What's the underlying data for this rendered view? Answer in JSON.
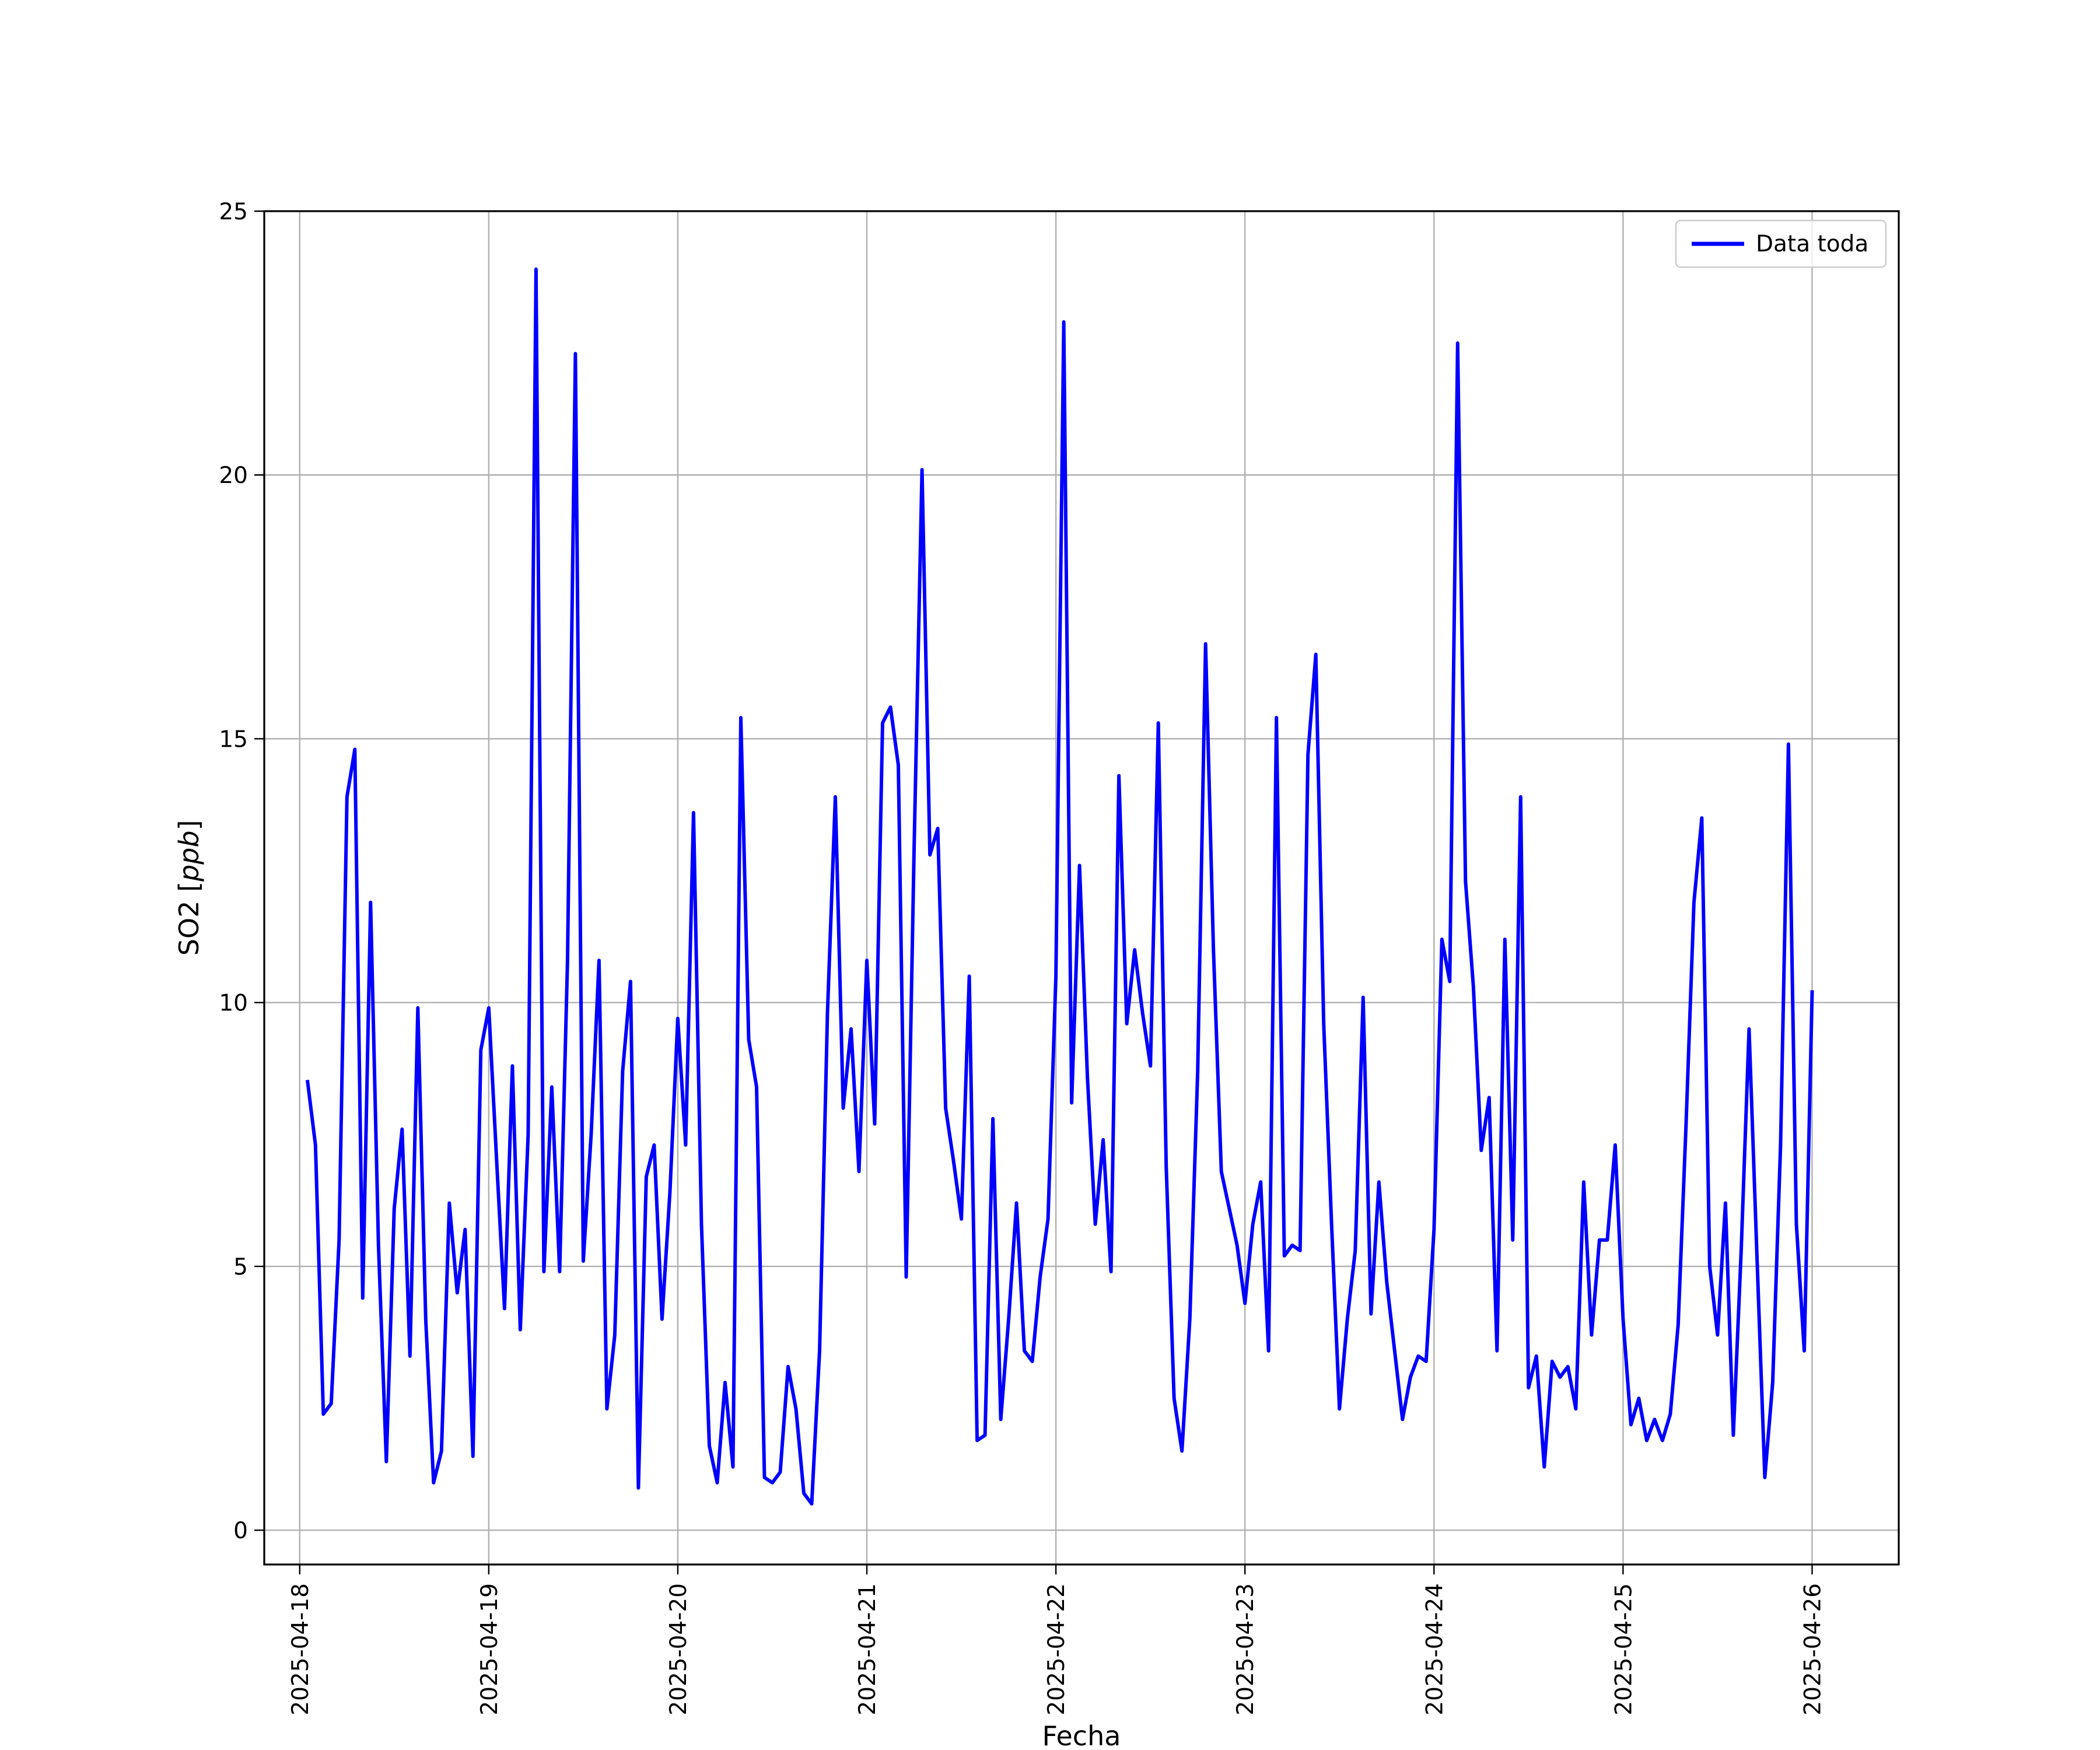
{
  "chart_data": {
    "type": "line",
    "xlabel": "Fecha",
    "ylabel": "SO2 [ppb]",
    "ylabel_parts": {
      "main": "SO2 [",
      "unit": "ppb",
      "close": "]"
    },
    "x_type": "datetime",
    "xlim": [
      "2025-04-17T19:30",
      "2025-04-26T11:00"
    ],
    "ylim": [
      -0.65,
      25
    ],
    "x_ticks": [
      "2025-04-18",
      "2025-04-19",
      "2025-04-20",
      "2025-04-21",
      "2025-04-22",
      "2025-04-23",
      "2025-04-24",
      "2025-04-25",
      "2025-04-26"
    ],
    "y_ticks": [
      0,
      5,
      10,
      15,
      20,
      25
    ],
    "y_tick_labels": [
      "0",
      "5",
      "10",
      "15",
      "20",
      "25"
    ],
    "grid": true,
    "legend_position": "top-right",
    "colors": {
      "series": "#0000ff",
      "grid": "#b0b0b0"
    },
    "series": [
      {
        "name": "Data toda",
        "x": [
          "2025-04-18T01:00",
          "2025-04-18T02:00",
          "2025-04-18T03:00",
          "2025-04-18T04:00",
          "2025-04-18T05:00",
          "2025-04-18T06:00",
          "2025-04-18T07:00",
          "2025-04-18T08:00",
          "2025-04-18T09:00",
          "2025-04-18T10:00",
          "2025-04-18T11:00",
          "2025-04-18T12:00",
          "2025-04-18T13:00",
          "2025-04-18T14:00",
          "2025-04-18T15:00",
          "2025-04-18T16:00",
          "2025-04-18T17:00",
          "2025-04-18T18:00",
          "2025-04-18T19:00",
          "2025-04-18T20:00",
          "2025-04-18T21:00",
          "2025-04-18T22:00",
          "2025-04-18T23:00",
          "2025-04-19T00:00",
          "2025-04-19T01:00",
          "2025-04-19T02:00",
          "2025-04-19T03:00",
          "2025-04-19T04:00",
          "2025-04-19T05:00",
          "2025-04-19T06:00",
          "2025-04-19T07:00",
          "2025-04-19T08:00",
          "2025-04-19T09:00",
          "2025-04-19T10:00",
          "2025-04-19T11:00",
          "2025-04-19T12:00",
          "2025-04-19T13:00",
          "2025-04-19T14:00",
          "2025-04-19T15:00",
          "2025-04-19T16:00",
          "2025-04-19T17:00",
          "2025-04-19T18:00",
          "2025-04-19T19:00",
          "2025-04-19T20:00",
          "2025-04-19T21:00",
          "2025-04-19T22:00",
          "2025-04-19T23:00",
          "2025-04-20T00:00",
          "2025-04-20T01:00",
          "2025-04-20T02:00",
          "2025-04-20T03:00",
          "2025-04-20T04:00",
          "2025-04-20T05:00",
          "2025-04-20T06:00",
          "2025-04-20T07:00",
          "2025-04-20T08:00",
          "2025-04-20T09:00",
          "2025-04-20T10:00",
          "2025-04-20T11:00",
          "2025-04-20T12:00",
          "2025-04-20T13:00",
          "2025-04-20T14:00",
          "2025-04-20T15:00",
          "2025-04-20T16:00",
          "2025-04-20T17:00",
          "2025-04-20T18:00",
          "2025-04-20T19:00",
          "2025-04-20T20:00",
          "2025-04-20T21:00",
          "2025-04-20T22:00",
          "2025-04-20T23:00",
          "2025-04-21T00:00",
          "2025-04-21T01:00",
          "2025-04-21T02:00",
          "2025-04-21T03:00",
          "2025-04-21T04:00",
          "2025-04-21T05:00",
          "2025-04-21T06:00",
          "2025-04-21T07:00",
          "2025-04-21T08:00",
          "2025-04-21T09:00",
          "2025-04-21T10:00",
          "2025-04-21T11:00",
          "2025-04-21T12:00",
          "2025-04-21T13:00",
          "2025-04-21T14:00",
          "2025-04-21T15:00",
          "2025-04-21T16:00",
          "2025-04-21T17:00",
          "2025-04-21T18:00",
          "2025-04-21T19:00",
          "2025-04-21T20:00",
          "2025-04-21T21:00",
          "2025-04-21T22:00",
          "2025-04-21T23:00",
          "2025-04-22T00:00",
          "2025-04-22T01:00",
          "2025-04-22T02:00",
          "2025-04-22T03:00",
          "2025-04-22T04:00",
          "2025-04-22T05:00",
          "2025-04-22T06:00",
          "2025-04-22T07:00",
          "2025-04-22T08:00",
          "2025-04-22T09:00",
          "2025-04-22T10:00",
          "2025-04-22T11:00",
          "2025-04-22T12:00",
          "2025-04-22T13:00",
          "2025-04-22T14:00",
          "2025-04-22T15:00",
          "2025-04-22T16:00",
          "2025-04-22T17:00",
          "2025-04-22T18:00",
          "2025-04-22T19:00",
          "2025-04-22T20:00",
          "2025-04-22T21:00",
          "2025-04-22T22:00",
          "2025-04-22T23:00",
          "2025-04-23T00:00",
          "2025-04-23T01:00",
          "2025-04-23T02:00",
          "2025-04-23T03:00",
          "2025-04-23T04:00",
          "2025-04-23T05:00",
          "2025-04-23T06:00",
          "2025-04-23T07:00",
          "2025-04-23T08:00",
          "2025-04-23T09:00",
          "2025-04-23T10:00",
          "2025-04-23T11:00",
          "2025-04-23T12:00",
          "2025-04-23T13:00",
          "2025-04-23T14:00",
          "2025-04-23T15:00",
          "2025-04-23T16:00",
          "2025-04-23T17:00",
          "2025-04-23T18:00",
          "2025-04-23T19:00",
          "2025-04-23T20:00",
          "2025-04-23T21:00",
          "2025-04-23T22:00",
          "2025-04-23T23:00",
          "2025-04-24T00:00",
          "2025-04-24T01:00",
          "2025-04-24T02:00",
          "2025-04-24T03:00",
          "2025-04-24T04:00",
          "2025-04-24T05:00",
          "2025-04-24T06:00",
          "2025-04-24T07:00",
          "2025-04-24T08:00",
          "2025-04-24T09:00",
          "2025-04-24T10:00",
          "2025-04-24T11:00",
          "2025-04-24T12:00",
          "2025-04-24T13:00",
          "2025-04-24T14:00",
          "2025-04-24T15:00",
          "2025-04-24T16:00",
          "2025-04-24T17:00",
          "2025-04-24T18:00",
          "2025-04-24T19:00",
          "2025-04-24T20:00",
          "2025-04-24T21:00",
          "2025-04-24T22:00",
          "2025-04-24T23:00",
          "2025-04-25T00:00",
          "2025-04-25T01:00",
          "2025-04-25T02:00",
          "2025-04-25T03:00",
          "2025-04-25T04:00",
          "2025-04-25T05:00",
          "2025-04-25T06:00",
          "2025-04-25T07:00",
          "2025-04-25T08:00",
          "2025-04-25T09:00",
          "2025-04-25T10:00",
          "2025-04-25T11:00",
          "2025-04-25T12:00",
          "2025-04-25T13:00",
          "2025-04-25T14:00",
          "2025-04-25T15:00",
          "2025-04-25T16:00",
          "2025-04-25T17:00",
          "2025-04-25T18:00",
          "2025-04-25T19:00",
          "2025-04-25T20:00",
          "2025-04-25T21:00",
          "2025-04-25T22:00",
          "2025-04-25T23:00",
          "2025-04-26T00:00"
        ],
        "values": [
          8.5,
          7.3,
          2.2,
          2.4,
          5.5,
          13.9,
          14.8,
          4.4,
          11.9,
          5.4,
          1.3,
          6.1,
          7.6,
          3.3,
          9.9,
          4.0,
          0.9,
          1.5,
          6.2,
          4.5,
          5.7,
          1.4,
          9.1,
          9.9,
          7.0,
          4.2,
          8.8,
          3.8,
          7.5,
          23.9,
          4.9,
          8.4,
          4.9,
          10.8,
          22.3,
          5.1,
          7.5,
          10.8,
          2.3,
          3.7,
          8.7,
          10.4,
          0.8,
          6.7,
          7.3,
          4.0,
          6.4,
          9.7,
          7.3,
          13.6,
          5.8,
          1.6,
          0.9,
          2.8,
          1.2,
          15.4,
          9.3,
          8.4,
          1.0,
          0.9,
          1.1,
          3.1,
          2.3,
          0.7,
          0.5,
          3.4,
          9.8,
          13.9,
          8.0,
          9.5,
          6.8,
          10.8,
          7.7,
          15.3,
          15.6,
          14.5,
          4.8,
          12.9,
          20.1,
          12.8,
          13.3,
          8.0,
          7.0,
          5.9,
          10.5,
          1.7,
          1.8,
          7.8,
          2.1,
          4.0,
          6.2,
          3.4,
          3.2,
          4.8,
          5.9,
          10.5,
          22.9,
          8.1,
          12.6,
          8.6,
          5.8,
          7.4,
          4.9,
          14.3,
          9.6,
          11.0,
          9.8,
          8.8,
          15.3,
          6.9,
          2.5,
          1.5,
          4.0,
          8.7,
          16.8,
          11.0,
          6.8,
          6.1,
          5.4,
          4.3,
          5.8,
          6.6,
          3.4,
          15.4,
          5.2,
          5.4,
          5.3,
          14.7,
          16.6,
          9.6,
          5.8,
          2.3,
          4.0,
          5.3,
          10.1,
          4.1,
          6.6,
          4.7,
          3.4,
          2.1,
          2.9,
          3.3,
          3.2,
          5.7,
          11.2,
          10.4,
          22.5,
          12.3,
          10.3,
          7.2,
          8.2,
          3.4,
          11.2,
          5.5,
          13.9,
          2.7,
          3.3,
          1.2,
          3.2,
          2.9,
          3.1,
          2.3,
          6.6,
          3.7,
          5.5,
          5.5,
          7.3,
          4.0,
          2.0,
          2.5,
          1.7,
          2.1,
          1.7,
          2.2,
          3.9,
          7.7,
          11.9,
          13.5,
          5.0,
          3.7,
          6.2,
          1.8,
          5.3,
          9.5,
          5.2,
          1.0,
          2.8,
          7.3,
          14.9,
          5.8,
          3.4,
          10.2
        ]
      }
    ]
  }
}
